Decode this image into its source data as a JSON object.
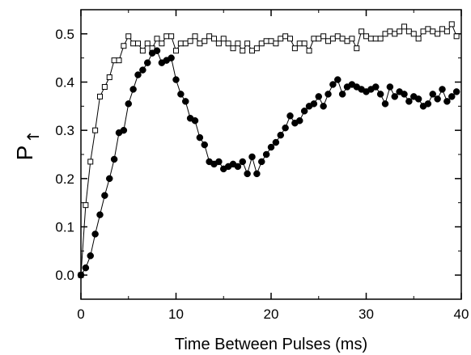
{
  "chart_data": {
    "type": "scatter",
    "title": "",
    "xlabel": "Time Between Pulses (ms)",
    "ylabel": "P",
    "ylabel_subscript": "↑",
    "xlim": [
      0,
      40
    ],
    "ylim": [
      -0.05,
      0.55
    ],
    "xticks": [
      0,
      10,
      20,
      30,
      40
    ],
    "yticks": [
      0.0,
      0.1,
      0.2,
      0.3,
      0.4,
      0.5
    ],
    "xtick_labels": [
      "0",
      "10",
      "20",
      "30",
      "40"
    ],
    "ytick_labels": [
      "0.0",
      "0.1",
      "0.2",
      "0.3",
      "0.4",
      "0.5"
    ],
    "grid": false,
    "series": [
      {
        "marker": "open-square",
        "color": "#000000",
        "x": [
          0,
          0.5,
          1,
          1.5,
          2,
          2.5,
          3,
          3.5,
          4,
          4.5,
          5,
          5.5,
          6,
          6.5,
          7,
          7.5,
          8,
          8.5,
          9,
          9.5,
          10,
          10.5,
          11,
          11.5,
          12,
          12.5,
          13,
          13.5,
          14,
          14.5,
          15,
          15.5,
          16,
          16.5,
          17,
          17.5,
          18,
          18.5,
          19,
          19.5,
          20,
          20.5,
          21,
          21.5,
          22,
          22.5,
          23,
          23.5,
          24,
          24.5,
          25,
          25.5,
          26,
          26.5,
          27,
          27.5,
          28,
          28.5,
          29,
          29.5,
          30,
          30.5,
          31,
          31.5,
          32,
          32.5,
          33,
          33.5,
          34,
          34.5,
          35,
          35.5,
          36,
          36.5,
          37,
          37.5,
          38,
          38.5,
          39,
          39.5
        ],
        "y": [
          0.0,
          0.145,
          0.235,
          0.3,
          0.37,
          0.39,
          0.41,
          0.445,
          0.445,
          0.475,
          0.495,
          0.48,
          0.48,
          0.465,
          0.48,
          0.47,
          0.49,
          0.48,
          0.495,
          0.495,
          0.465,
          0.48,
          0.48,
          0.485,
          0.495,
          0.48,
          0.485,
          0.495,
          0.49,
          0.48,
          0.49,
          0.48,
          0.47,
          0.48,
          0.465,
          0.48,
          0.465,
          0.47,
          0.48,
          0.485,
          0.485,
          0.48,
          0.49,
          0.495,
          0.49,
          0.47,
          0.48,
          0.48,
          0.465,
          0.49,
          0.49,
          0.495,
          0.485,
          0.49,
          0.495,
          0.49,
          0.485,
          0.49,
          0.47,
          0.505,
          0.495,
          0.49,
          0.49,
          0.49,
          0.5,
          0.505,
          0.5,
          0.505,
          0.515,
          0.505,
          0.5,
          0.49,
          0.505,
          0.51,
          0.505,
          0.5,
          0.51,
          0.505,
          0.52,
          0.495
        ]
      },
      {
        "marker": "filled-circle",
        "color": "#000000",
        "x": [
          0,
          0.5,
          1,
          1.5,
          2,
          2.5,
          3,
          3.5,
          4,
          4.5,
          5,
          5.5,
          6,
          6.5,
          7,
          7.5,
          8,
          8.5,
          9,
          9.5,
          10,
          10.5,
          11,
          11.5,
          12,
          12.5,
          13,
          13.5,
          14,
          14.5,
          15,
          15.5,
          16,
          16.5,
          17,
          17.5,
          18,
          18.5,
          19,
          19.5,
          20,
          20.5,
          21,
          21.5,
          22,
          22.5,
          23,
          23.5,
          24,
          24.5,
          25,
          25.5,
          26,
          26.5,
          27,
          27.5,
          28,
          28.5,
          29,
          29.5,
          30,
          30.5,
          31,
          31.5,
          32,
          32.5,
          33,
          33.5,
          34,
          34.5,
          35,
          35.5,
          36,
          36.5,
          37,
          37.5,
          38,
          38.5,
          39,
          39.5
        ],
        "y": [
          0.0,
          0.015,
          0.04,
          0.085,
          0.125,
          0.165,
          0.2,
          0.24,
          0.295,
          0.3,
          0.355,
          0.385,
          0.415,
          0.425,
          0.44,
          0.46,
          0.465,
          0.44,
          0.445,
          0.45,
          0.405,
          0.375,
          0.36,
          0.325,
          0.32,
          0.285,
          0.27,
          0.235,
          0.23,
          0.235,
          0.22,
          0.225,
          0.23,
          0.225,
          0.235,
          0.21,
          0.245,
          0.21,
          0.235,
          0.25,
          0.265,
          0.275,
          0.29,
          0.305,
          0.33,
          0.315,
          0.32,
          0.34,
          0.35,
          0.355,
          0.37,
          0.35,
          0.375,
          0.395,
          0.405,
          0.375,
          0.39,
          0.395,
          0.39,
          0.385,
          0.38,
          0.385,
          0.39,
          0.375,
          0.355,
          0.39,
          0.37,
          0.38,
          0.375,
          0.36,
          0.37,
          0.365,
          0.35,
          0.355,
          0.375,
          0.365,
          0.385,
          0.36,
          0.37,
          0.38
        ]
      }
    ]
  }
}
